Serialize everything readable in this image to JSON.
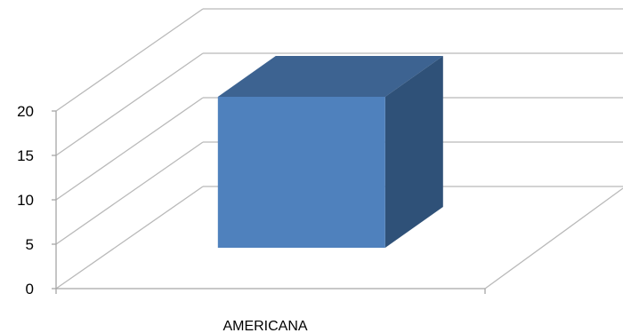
{
  "chart_data": {
    "type": "bar",
    "categories": [
      "AMERICANA"
    ],
    "values": [
      17
    ],
    "ylim": [
      0,
      20
    ],
    "yticks": [
      "0",
      "5",
      "10",
      "15",
      "20"
    ],
    "grid": true,
    "three_d": true,
    "title": "",
    "xlabel": "",
    "ylabel": "",
    "colors": {
      "bar_front": "#4f81bd",
      "bar_top": "#3d6391",
      "bar_side": "#2f5178",
      "gridline": "#b9b9b9",
      "axis": "#a6a6a6"
    }
  }
}
